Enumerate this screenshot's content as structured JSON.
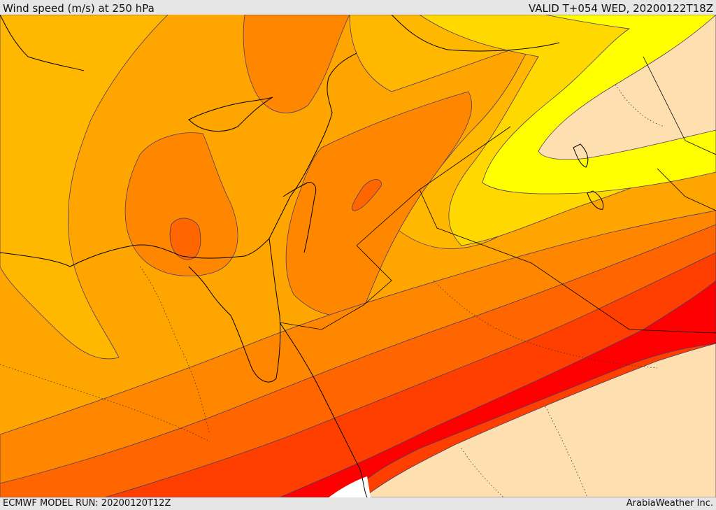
{
  "header": {
    "title": "Wind speed (m/s) at 250 hPa",
    "valid": "VALID T+054 WED, 20200122T18Z"
  },
  "footer": {
    "model_run": "ECMWF MODEL RUN: 20200120T12Z",
    "credit": "ArabiaWeather Inc."
  },
  "map": {
    "variable": "wind-speed",
    "level_hpa": 250,
    "units": "m/s",
    "shading_colors": [
      "#fedfb0",
      "#ffff00",
      "#ffd800",
      "#ffb700",
      "#ffa500",
      "#ff8700",
      "#ff6600",
      "#ff3f00",
      "#ff0000"
    ],
    "boundary_color": "#000000",
    "contour_color": "#4a3a6a"
  }
}
